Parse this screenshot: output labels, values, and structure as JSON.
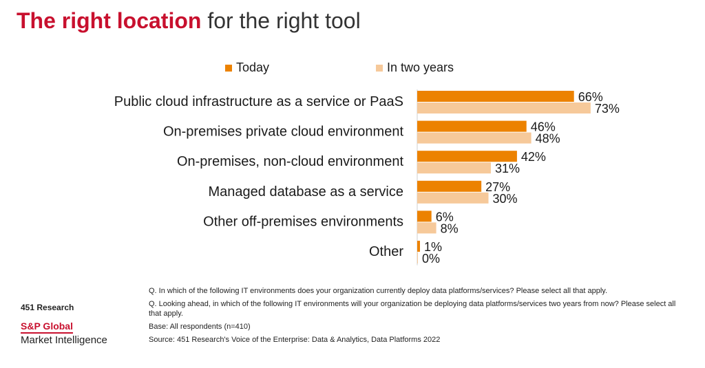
{
  "title": {
    "bold": "The right location",
    "light": "for the right tool"
  },
  "colors": {
    "today": "#ec8200",
    "two_years": "#f6c99a",
    "brand_red": "#c8102e"
  },
  "chart_data": {
    "type": "bar",
    "orientation": "horizontal",
    "categories": [
      "Public cloud infrastructure as a service or PaaS",
      "On-premises private cloud environment",
      "On-premises, non-cloud environment",
      "Managed database as a service",
      "Other off-premises environments",
      "Other"
    ],
    "series": [
      {
        "name": "Today",
        "values": [
          66,
          46,
          42,
          27,
          6,
          1
        ],
        "labels": [
          "66%",
          "46%",
          "42%",
          "27%",
          "6%",
          "1%"
        ]
      },
      {
        "name": "In two years",
        "values": [
          73,
          48,
          31,
          30,
          8,
          0
        ],
        "labels": [
          "73%",
          "48%",
          "31%",
          "30%",
          "8%",
          "0%"
        ]
      }
    ],
    "legend_position": "top",
    "grid": false
  },
  "notes": [
    "Q. In which of the following IT environments does your organization currently deploy data platforms/services? Please select all that apply.",
    "Q. Looking ahead, in which of the following IT environments will your organization be deploying data platforms/services two years from now? Please select all that apply.",
    "Base: All respondents (n=410)",
    "Source: 451 Research's Voice of the Enterprise: Data & Analytics, Data Platforms 2022"
  ],
  "brand": {
    "line1": "451 Research",
    "line2": "S&P Global",
    "line3": "Market Intelligence"
  }
}
